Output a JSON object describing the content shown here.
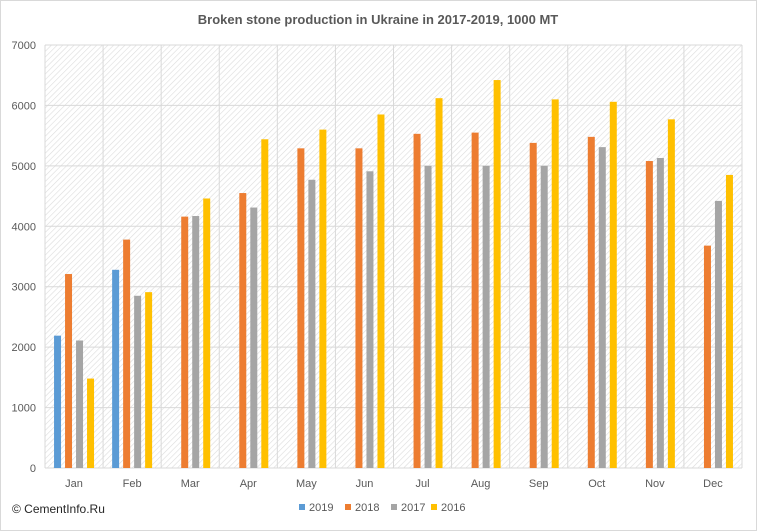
{
  "watermark": "© CementInfo.Ru",
  "chart_data": {
    "type": "bar",
    "title": "Broken stone production in Ukraine in 2017-2019,  1000  MT",
    "xlabel": "",
    "ylabel": "",
    "ylim": [
      0,
      7000
    ],
    "yticks": [
      0,
      1000,
      2000,
      3000,
      4000,
      5000,
      6000,
      7000
    ],
    "grid": true,
    "legend_position": "bottom",
    "categories": [
      "Jan",
      "Feb",
      "Mar",
      "Apr",
      "May",
      "Jun",
      "Jul",
      "Aug",
      "Sep",
      "Oct",
      "Nov",
      "Dec"
    ],
    "series": [
      {
        "name": "2019",
        "color": "#5b9bd5",
        "values": [
          2190,
          3280,
          null,
          null,
          null,
          null,
          null,
          null,
          null,
          null,
          null,
          null
        ]
      },
      {
        "name": "2018",
        "color": "#ed7d31",
        "values": [
          3210,
          3780,
          4160,
          4550,
          5290,
          5290,
          5530,
          5550,
          5380,
          5480,
          5080,
          3680
        ]
      },
      {
        "name": "2017",
        "color": "#a5a5a5",
        "values": [
          2110,
          2850,
          4170,
          4310,
          4770,
          4910,
          5000,
          5000,
          5000,
          5310,
          5130,
          4420
        ]
      },
      {
        "name": "2016",
        "color": "#ffc000",
        "values": [
          1480,
          2910,
          4460,
          5440,
          5600,
          5850,
          6120,
          6420,
          6100,
          6060,
          5770,
          4850
        ]
      }
    ]
  }
}
